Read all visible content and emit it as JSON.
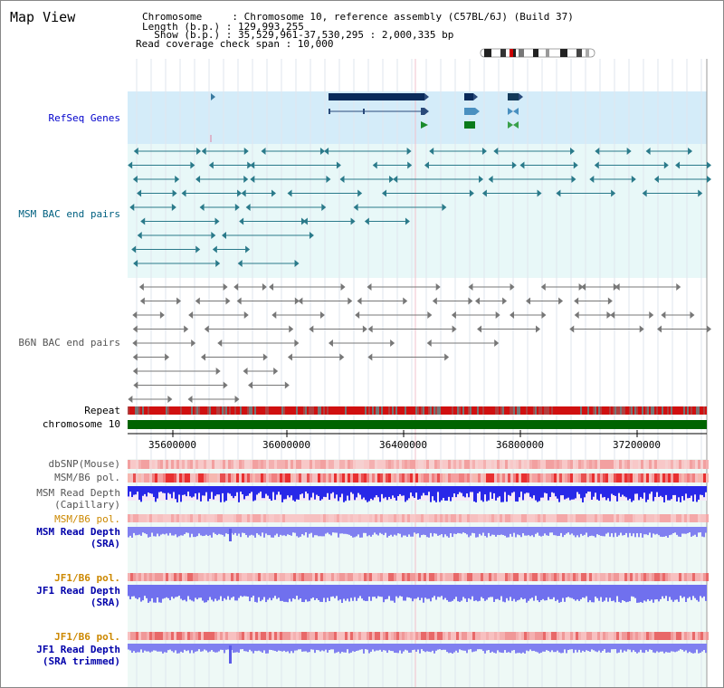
{
  "title": "Map View",
  "header": {
    "line1_key": "Chromosome     ",
    "line1_val": ": Chromosome 10, reference assembly (C57BL/6J) (Build 37)",
    "line2_key": "Length (b.p.) ",
    "line2_val": ": 129,993,255",
    "line3_key": "  Show (b.p.) ",
    "line3_val": ": 35,529,961-37,530,295 : 2,000,335 bp",
    "line4": "Read coverage check span : 10,000"
  },
  "tracks": {
    "refseq": "RefSeq Genes",
    "msm_bac": "MSM BAC end pairs",
    "b6n_bac": "B6N BAC end pairs",
    "repeat": "Repeat",
    "chromosome": "chromosome 10",
    "dbsnp": "dbSNP(Mouse)",
    "msm_b6_pol_1": "MSM/B6 pol.",
    "msm_read_depth_cap_1": "MSM Read Depth",
    "msm_read_depth_cap_2": "(Capillary)",
    "msm_b6_pol_2": "MSM/B6 pol.",
    "msm_read_depth_sra_1": "MSM Read Depth",
    "msm_read_depth_sra_2": "(SRA)",
    "jf1_b6_pol_1": "JF1/B6 pol.",
    "jf1_read_depth_sra_1": "JF1 Read Depth",
    "jf1_read_depth_sra_2": "(SRA)",
    "jf1_b6_pol_2": "JF1/B6 pol.",
    "jf1_read_depth_trim_1": "JF1 Read Depth",
    "jf1_read_depth_trim_2": "(SRA trimmed)"
  },
  "axis_ticks": [
    "35600000",
    "36000000",
    "36400000",
    "36800000",
    "37200000"
  ],
  "colors": {
    "refseq_label": "#0000cc",
    "msm_label": "#006080",
    "b6n_label": "#555555",
    "pol_label": "#cc8800",
    "depth_label": "#0000aa",
    "refseq_bg": "#d4ecf9",
    "msm_bg": "#e8f8f8",
    "chromosome_bar": "#006400"
  }
}
